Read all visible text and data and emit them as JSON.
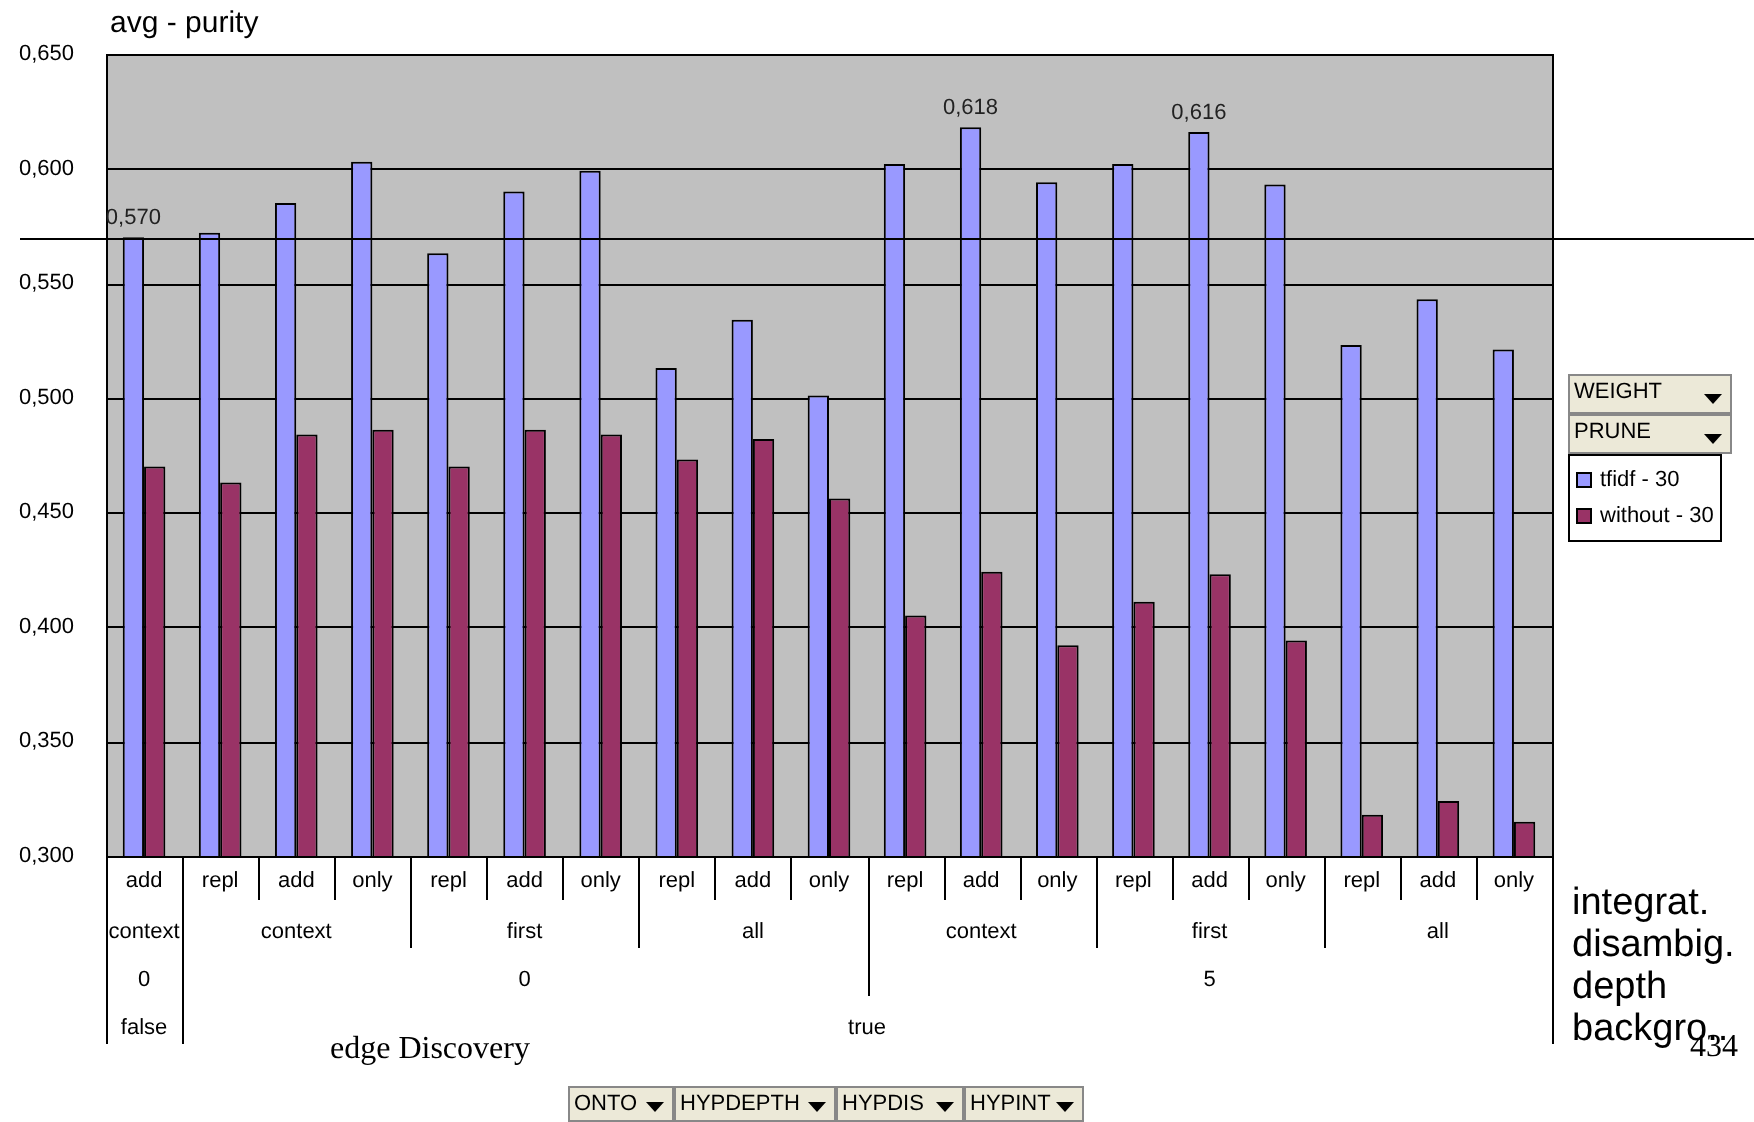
{
  "chart_data": {
    "type": "bar",
    "title": "avg - purity",
    "categories": [
      "add",
      "repl",
      "add",
      "only",
      "repl",
      "add",
      "only",
      "repl",
      "add",
      "only",
      "repl",
      "add",
      "only",
      "repl",
      "add",
      "only",
      "repl",
      "add",
      "only"
    ],
    "series": [
      {
        "name": "tfidf - 30",
        "color": "#9999ff",
        "values": [
          0.57,
          0.572,
          0.585,
          0.603,
          0.563,
          0.59,
          0.599,
          0.513,
          0.534,
          0.501,
          0.602,
          0.618,
          0.594,
          0.602,
          0.616,
          0.593,
          0.523,
          0.543,
          0.521
        ],
        "value_labels": [
          "0,570",
          null,
          null,
          null,
          null,
          null,
          null,
          null,
          null,
          null,
          null,
          "0,618",
          null,
          null,
          "0,616",
          null,
          null,
          null,
          null
        ]
      },
      {
        "name": "without - 30",
        "color": "#993366",
        "values": [
          0.47,
          0.463,
          0.484,
          0.486,
          0.47,
          0.486,
          0.484,
          0.473,
          0.482,
          0.456,
          0.405,
          0.424,
          0.392,
          0.411,
          0.423,
          0.394,
          0.318,
          0.324,
          0.315
        ]
      }
    ],
    "ylim": [
      0.3,
      0.65
    ],
    "yticks": [
      {
        "value": 0.3,
        "label": "0,300"
      },
      {
        "value": 0.35,
        "label": "0,350"
      },
      {
        "value": 0.4,
        "label": "0,400"
      },
      {
        "value": 0.45,
        "label": "0,450"
      },
      {
        "value": 0.5,
        "label": "0,500"
      },
      {
        "value": 0.55,
        "label": "0,550"
      },
      {
        "value": 0.6,
        "label": "0,600"
      },
      {
        "value": 0.65,
        "label": "0,650"
      }
    ],
    "grid": "y",
    "legend": "right",
    "ref_lines": [
      {
        "axis": "y",
        "value": 0.57
      }
    ],
    "annotations": [
      "context",
      "context",
      "first",
      "all",
      "context",
      "first",
      "all",
      "0",
      "0",
      "5",
      "false",
      "true",
      "integrat.",
      "disambig.",
      "depth",
      "backgro..",
      "edge Discovery",
      "434",
      "WEIGHT",
      "PRUNE",
      "ONTO",
      "HYPDEPTH",
      "HYPDIS",
      "HYPINT"
    ]
  }
}
